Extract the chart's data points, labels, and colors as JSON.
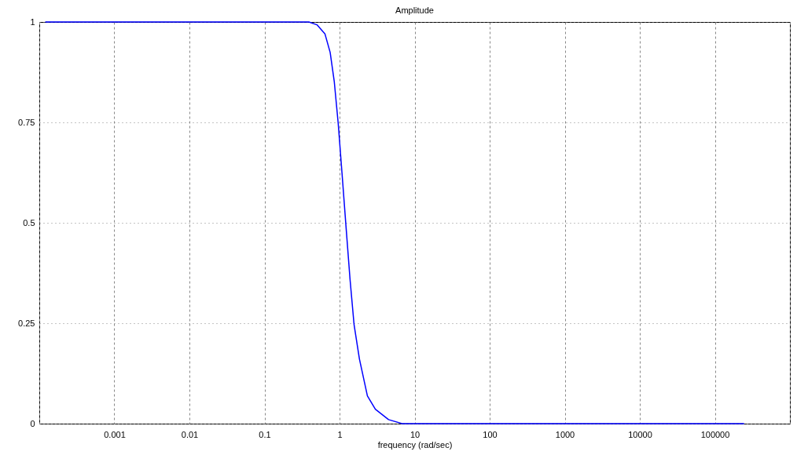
{
  "chart_data": {
    "type": "line",
    "title": "Amplitude",
    "xlabel": "frequency (rad/sec)",
    "log": "x",
    "x": [
      0.00012,
      0.003,
      0.03,
      0.2,
      0.39,
      0.5,
      0.64,
      0.75,
      0.85,
      0.96,
      1.08,
      1.22,
      1.38,
      1.56,
      1.84,
      2.35,
      3.0,
      4.5,
      6.8,
      10,
      100,
      1000,
      10000,
      100000,
      245000
    ],
    "series": [
      {
        "color": "#0000ff",
        "values": [
          1,
          1,
          1,
          1,
          1,
          0.993,
          0.97,
          0.924,
          0.852,
          0.747,
          0.622,
          0.49,
          0.359,
          0.247,
          0.161,
          0.069,
          0.036,
          0.01,
          0,
          0,
          0,
          0,
          0,
          0,
          0
        ]
      }
    ],
    "xlim": [
      0.0001,
      1000000
    ],
    "xticks": [
      {
        "value": 0.0001,
        "label": null
      },
      0.001,
      0.01,
      0.1,
      1,
      10,
      100,
      1000,
      10000,
      100000,
      {
        "value": 1000000,
        "label": null
      }
    ],
    "ylim": [
      0,
      1
    ],
    "yticks": [
      0,
      0.25,
      0.5,
      0.75,
      1
    ],
    "grid": true,
    "line_style": "solid"
  }
}
